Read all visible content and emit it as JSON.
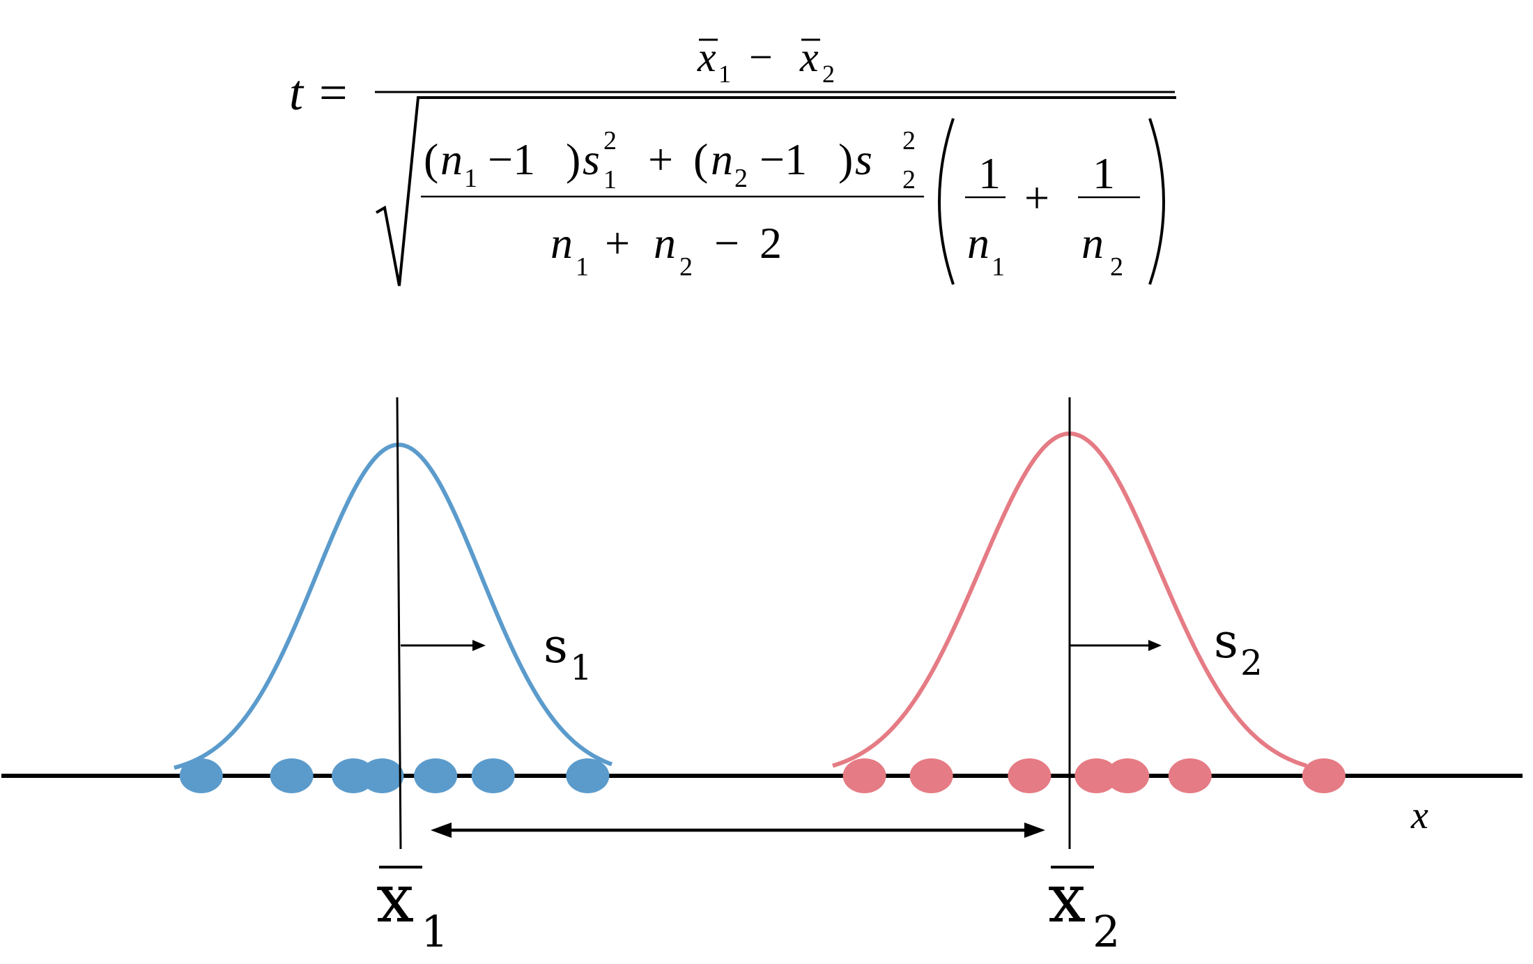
{
  "formula": {
    "t": "t",
    "equals": "=",
    "numerator": {
      "x": "x",
      "minus": "−",
      "sub1": "1",
      "sub2": "2"
    },
    "denominator": {
      "open_paren": "(",
      "close_paren": ")",
      "n": "n",
      "s": "s",
      "minus_one": "−1",
      "plus": "+",
      "minus": "−",
      "sub1": "1",
      "sub2": "2",
      "sup2": "2",
      "two": "2",
      "one": "1"
    }
  },
  "diagram": {
    "colors": {
      "group1": "#5b9bcc",
      "group2": "#e57b84",
      "axis": "#000000"
    },
    "group1_points": [
      -2.4,
      -1.3,
      -0.55,
      -0.2,
      0.45,
      1.15,
      2.3
    ],
    "group2_points": [
      -2.3,
      -1.55,
      -0.45,
      0.3,
      0.65,
      1.35,
      2.85
    ],
    "labels": {
      "s1": "s",
      "s1_sub": "1",
      "s2": "s",
      "s2_sub": "2",
      "xbar1": "x",
      "xbar1_sub": "1",
      "xbar2": "x",
      "xbar2_sub": "2",
      "x_axis": "x"
    }
  }
}
